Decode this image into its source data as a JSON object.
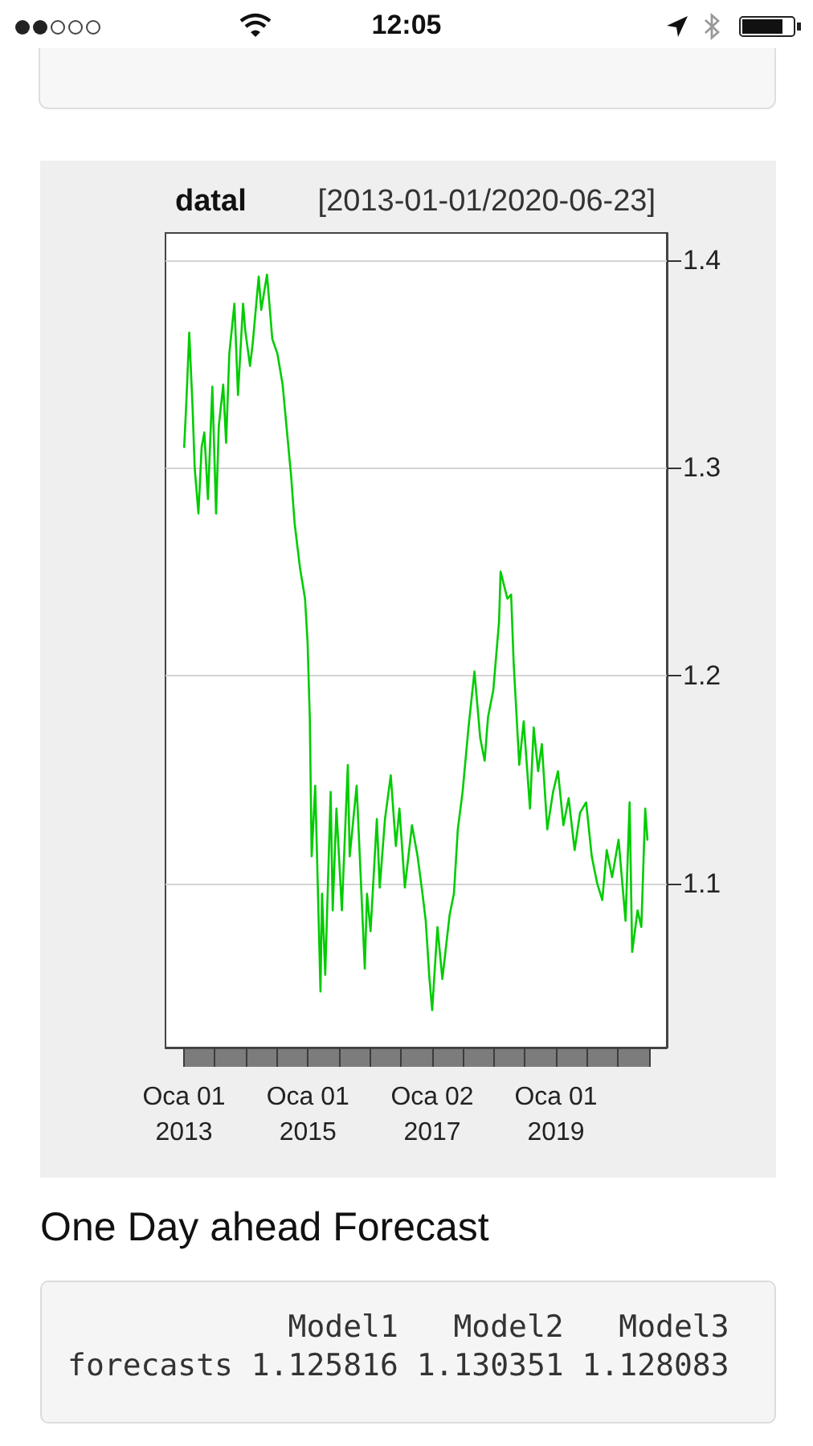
{
  "chart_data": {
    "type": "line",
    "title": "datal",
    "subtitle": "[2013-01-01/2020-06-23]",
    "annotations": [
      "12:05",
      "One Day ahead Forecast",
      "            Model1   Model2   Model3",
      "forecasts 1.125816 1.130351 1.128083"
    ],
    "x": [
      "2013-01-02",
      "2013-01-14",
      "2013-02-01",
      "2013-02-20",
      "2013-03-05",
      "2013-03-27",
      "2013-04-15",
      "2013-05-01",
      "2013-05-22",
      "2013-06-17",
      "2013-07-09",
      "2013-07-25",
      "2013-08-20",
      "2013-09-06",
      "2013-09-25",
      "2013-10-25",
      "2013-11-15",
      "2013-12-15",
      "2013-12-28",
      "2014-01-25",
      "2014-02-10",
      "2014-03-17",
      "2014-04-01",
      "2014-05-05",
      "2014-06-05",
      "2014-07-05",
      "2014-08-05",
      "2014-09-24",
      "2014-10-15",
      "2014-11-15",
      "2014-12-15",
      "2014-12-30",
      "2015-01-12",
      "2015-01-23",
      "2015-02-13",
      "2015-03-16",
      "2015-03-25",
      "2015-04-13",
      "2015-05-15",
      "2015-05-27",
      "2015-06-18",
      "2015-07-20",
      "2015-08-24",
      "2015-09-04",
      "2015-10-15",
      "2015-12-02",
      "2015-12-15",
      "2016-01-05",
      "2016-02-11",
      "2016-02-28",
      "2016-03-30",
      "2016-05-03",
      "2016-06-02",
      "2016-06-23",
      "2016-07-25",
      "2016-09-05",
      "2016-10-08",
      "2016-11-06",
      "2016-11-25",
      "2016-12-17",
      "2017-01-02",
      "2017-02-02",
      "2017-03-03",
      "2017-04-15",
      "2017-05-10",
      "2017-06-02",
      "2017-06-30",
      "2017-08-04",
      "2017-09-08",
      "2017-10-12",
      "2017-11-07",
      "2017-11-27",
      "2017-12-28",
      "2018-01-31",
      "2018-02-09",
      "2018-03-21",
      "2018-04-12",
      "2018-04-27",
      "2018-05-30",
      "2018-06-25",
      "2018-08-01",
      "2018-08-23",
      "2018-09-18",
      "2018-10-10",
      "2018-11-11",
      "2018-12-15",
      "2019-01-13",
      "2019-02-14",
      "2019-03-17",
      "2019-04-21",
      "2019-05-23",
      "2019-06-28",
      "2019-07-31",
      "2019-09-01",
      "2019-10-01",
      "2019-10-27",
      "2019-11-28",
      "2020-01-05",
      "2020-02-15",
      "2020-03-10",
      "2020-03-25",
      "2020-04-26",
      "2020-05-18",
      "2020-06-10",
      "2020-06-23"
    ],
    "values": [
      1.31,
      1.33,
      1.365,
      1.33,
      1.3,
      1.278,
      1.31,
      1.317,
      1.285,
      1.339,
      1.278,
      1.32,
      1.34,
      1.312,
      1.355,
      1.379,
      1.335,
      1.379,
      1.366,
      1.349,
      1.36,
      1.392,
      1.376,
      1.393,
      1.362,
      1.355,
      1.34,
      1.296,
      1.273,
      1.252,
      1.237,
      1.216,
      1.18,
      1.113,
      1.147,
      1.048,
      1.095,
      1.056,
      1.144,
      1.087,
      1.136,
      1.087,
      1.157,
      1.113,
      1.147,
      1.059,
      1.095,
      1.077,
      1.131,
      1.098,
      1.131,
      1.152,
      1.118,
      1.136,
      1.098,
      1.128,
      1.113,
      1.095,
      1.082,
      1.054,
      1.039,
      1.079,
      1.054,
      1.085,
      1.095,
      1.126,
      1.144,
      1.175,
      1.202,
      1.17,
      1.159,
      1.18,
      1.193,
      1.226,
      1.25,
      1.237,
      1.239,
      1.206,
      1.157,
      1.178,
      1.136,
      1.175,
      1.154,
      1.167,
      1.126,
      1.144,
      1.154,
      1.128,
      1.141,
      1.116,
      1.134,
      1.139,
      1.113,
      1.1,
      1.092,
      1.116,
      1.103,
      1.121,
      1.082,
      1.139,
      1.067,
      1.087,
      1.079,
      1.136,
      1.121
    ],
    "color": "#00cc00",
    "xlim": [
      "2012-09-14",
      "2020-10-15"
    ],
    "xticks": [
      {
        "value": "2013-01-01",
        "label": "Oca 01\n2013"
      },
      {
        "value": "2013-07-01",
        "label": null
      },
      {
        "value": "2014-01-01",
        "label": null
      },
      {
        "value": "2014-07-01",
        "label": null
      },
      {
        "value": "2015-01-01",
        "label": "Oca 01\n2015"
      },
      {
        "value": "2015-07-01",
        "label": null
      },
      {
        "value": "2016-01-01",
        "label": null
      },
      {
        "value": "2016-07-01",
        "label": null
      },
      {
        "value": "2017-01-02",
        "label": "Oca 02\n2017"
      },
      {
        "value": "2017-07-01",
        "label": null
      },
      {
        "value": "2018-01-01",
        "label": null
      },
      {
        "value": "2018-07-01",
        "label": null
      },
      {
        "value": "2019-01-01",
        "label": "Oca 01\n2019"
      },
      {
        "value": "2019-07-01",
        "label": null
      },
      {
        "value": "2020-01-01",
        "label": null
      },
      {
        "value": "2020-07-01",
        "label": null
      }
    ],
    "ylim": [
      1.021,
      1.413
    ],
    "yticks": [
      1.1,
      1.2,
      1.3,
      1.4
    ],
    "grid": "y"
  }
}
